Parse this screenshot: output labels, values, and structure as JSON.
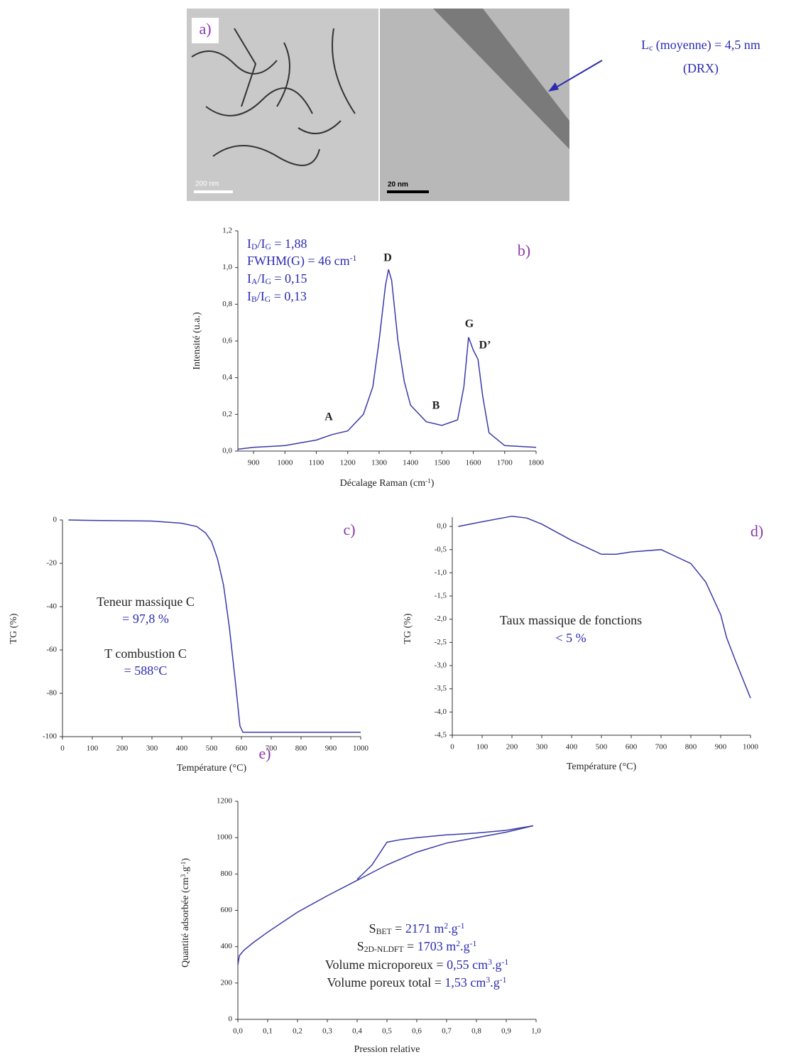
{
  "figure_a": {
    "label": "a)",
    "scale_bars": [
      "200 nm",
      "20 nm"
    ],
    "annotation": [
      {
        "color": "#2b2bb0",
        "parts": [
          "L",
          {
            "sub": "c"
          },
          " (moyenne) = 4,5 nm"
        ]
      },
      {
        "color": "#2b2bb0",
        "parts": [
          "(DRX)"
        ]
      }
    ]
  },
  "chart_data": [
    {
      "type": "line",
      "panel_label": "b)",
      "xlabel": [
        "Décalage Raman (cm",
        {
          "sup": "-1"
        },
        ")"
      ],
      "ylabel": "Intensité (u.a.)",
      "xlim": [
        850,
        1800
      ],
      "ylim": [
        0,
        1.2
      ],
      "xticks": [
        900,
        1000,
        1100,
        1200,
        1300,
        1400,
        1500,
        1600,
        1700,
        1800
      ],
      "yticks": [
        {
          "value": 0,
          "label": "0,0"
        },
        {
          "value": 0.2,
          "label": "0,2"
        },
        {
          "value": 0.4,
          "label": "0,4"
        },
        {
          "value": 0.6,
          "label": "0,6"
        },
        {
          "value": 0.8,
          "label": "0,8"
        },
        {
          "value": 1,
          "label": "1,0"
        },
        {
          "value": 1.2,
          "label": "1,2"
        }
      ],
      "x": [
        850,
        900,
        1000,
        1100,
        1150,
        1200,
        1250,
        1280,
        1300,
        1320,
        1330,
        1340,
        1360,
        1380,
        1400,
        1450,
        1500,
        1550,
        1570,
        1585,
        1600,
        1615,
        1630,
        1650,
        1700,
        1800
      ],
      "series": [
        {
          "color": "#3a3aa8",
          "values": [
            0.01,
            0.02,
            0.03,
            0.06,
            0.09,
            0.11,
            0.2,
            0.35,
            0.6,
            0.9,
            0.99,
            0.93,
            0.6,
            0.38,
            0.25,
            0.16,
            0.14,
            0.17,
            0.35,
            0.62,
            0.55,
            0.5,
            0.3,
            0.1,
            0.03,
            0.02
          ]
        }
      ],
      "peak_labels": [
        "A",
        "D",
        "B",
        "G",
        "D’"
      ],
      "annotations": [
        {
          "color": "#2b2bb0",
          "parts": [
            "I",
            {
              "sub": "D"
            },
            "/I",
            {
              "sub": "G"
            },
            " = 1,88"
          ]
        },
        {
          "color": "#2b2bb0",
          "parts": [
            "FWHM(G) = 46 cm",
            {
              "sup": "-1"
            }
          ]
        },
        {
          "color": "#2b2bb0",
          "parts": [
            "I",
            {
              "sub": "A"
            },
            "/I",
            {
              "sub": "G"
            },
            " = 0,15"
          ]
        },
        {
          "color": "#2b2bb0",
          "parts": [
            "I",
            {
              "sub": "B"
            },
            "/I",
            {
              "sub": "G"
            },
            " = 0,13"
          ]
        }
      ]
    },
    {
      "type": "line",
      "panel_label": "c)",
      "xlabel": "Température (°C)",
      "ylabel": "TG (%)",
      "xlim": [
        0,
        1000
      ],
      "ylim": [
        -100,
        0
      ],
      "xticks": [
        0,
        100,
        200,
        300,
        400,
        500,
        600,
        700,
        800,
        900,
        1000
      ],
      "yticks": [
        -100,
        -80,
        -60,
        -40,
        -20,
        0
      ],
      "x": [
        20,
        100,
        300,
        400,
        450,
        480,
        500,
        520,
        540,
        560,
        580,
        595,
        605,
        1000
      ],
      "series": [
        {
          "color": "#3a3aa8",
          "values": [
            0,
            -0.2,
            -0.5,
            -1.5,
            -3,
            -6,
            -10,
            -18,
            -30,
            -50,
            -75,
            -95,
            -98,
            -98
          ]
        }
      ],
      "annotations": [
        {
          "color": "#222222",
          "parts": [
            "Teneur massique C"
          ]
        },
        {
          "color": "#2b2bb0",
          "parts": [
            "= 97,8 %"
          ]
        },
        {
          "color": "#222222",
          "parts": [
            "T combustion C"
          ]
        },
        {
          "color": "#2b2bb0",
          "parts": [
            "= 588°C"
          ]
        }
      ]
    },
    {
      "type": "line",
      "panel_label": "d)",
      "xlabel": "Température (°C)",
      "ylabel": "TG (%)",
      "xlim": [
        0,
        1000
      ],
      "ylim": [
        -4.5,
        0.2
      ],
      "xticks": [
        0,
        100,
        200,
        300,
        400,
        500,
        600,
        700,
        800,
        900,
        1000
      ],
      "yticks": [
        {
          "value": -4.5,
          "label": "-4,5"
        },
        {
          "value": -4,
          "label": "-4,0"
        },
        {
          "value": -3.5,
          "label": "-3,5"
        },
        {
          "value": -3,
          "label": "-3,0"
        },
        {
          "value": -2.5,
          "label": "-2,5"
        },
        {
          "value": -2,
          "label": "-2,0"
        },
        {
          "value": -1.5,
          "label": "-1,5"
        },
        {
          "value": -1,
          "label": "-1,0"
        },
        {
          "value": -0.5,
          "label": "-0,5"
        },
        {
          "value": 0,
          "label": "0,0"
        }
      ],
      "x": [
        20,
        100,
        200,
        250,
        300,
        400,
        500,
        550,
        600,
        700,
        750,
        800,
        850,
        900,
        920,
        950,
        1000
      ],
      "series": [
        {
          "color": "#3a3aa8",
          "values": [
            0,
            0.1,
            0.22,
            0.18,
            0.05,
            -0.3,
            -0.6,
            -0.6,
            -0.55,
            -0.5,
            -0.65,
            -0.8,
            -1.2,
            -1.9,
            -2.4,
            -2.9,
            -3.7
          ]
        }
      ],
      "annotations": [
        {
          "color": "#222222",
          "parts": [
            "Taux massique de fonctions"
          ]
        },
        {
          "color": "#2b2bb0",
          "parts": [
            "< 5 %"
          ]
        }
      ]
    },
    {
      "type": "line",
      "panel_label": "e)",
      "xlabel": "Pression relative",
      "ylabel": [
        "Quantité adsorbée (cm",
        {
          "sup": "3"
        },
        ".g",
        {
          "sup": "-1"
        },
        ")"
      ],
      "xlim": [
        0,
        1
      ],
      "ylim": [
        0,
        1200
      ],
      "xticks": [
        {
          "value": 0,
          "label": "0,0"
        },
        {
          "value": 0.1,
          "label": "0,1"
        },
        {
          "value": 0.2,
          "label": "0,2"
        },
        {
          "value": 0.3,
          "label": "0,3"
        },
        {
          "value": 0.4,
          "label": "0,4"
        },
        {
          "value": 0.5,
          "label": "0,5"
        },
        {
          "value": 0.6,
          "label": "0,6"
        },
        {
          "value": 0.7,
          "label": "0,7"
        },
        {
          "value": 0.8,
          "label": "0,8"
        },
        {
          "value": 0.9,
          "label": "0,9"
        },
        {
          "value": 1,
          "label": "1,0"
        }
      ],
      "yticks": [
        0,
        200,
        400,
        600,
        800,
        1000,
        1200
      ],
      "series": [
        {
          "color": "#3a3aa8",
          "x": [
            0,
            0.005,
            0.02,
            0.05,
            0.1,
            0.2,
            0.3,
            0.4,
            0.5,
            0.6,
            0.7,
            0.8,
            0.9,
            0.99
          ],
          "values": [
            300,
            350,
            380,
            420,
            480,
            590,
            680,
            765,
            850,
            920,
            970,
            1000,
            1030,
            1065
          ]
        },
        {
          "color": "#3a3aa8",
          "x": [
            0.99,
            0.9,
            0.8,
            0.7,
            0.6,
            0.55,
            0.5,
            0.45,
            0.4
          ],
          "values": [
            1065,
            1040,
            1025,
            1015,
            1000,
            990,
            975,
            850,
            770
          ]
        }
      ],
      "annotations": [
        {
          "color": "#222222",
          "parts": [
            "S",
            {
              "sub": "BET"
            },
            " = ",
            {
              "text": "2171 m",
              "color": "#2b2bb0"
            },
            {
              "sup": "2",
              "color": "#2b2bb0"
            },
            {
              "text": ".g",
              "color": "#2b2bb0"
            },
            {
              "sup": "-1",
              "color": "#2b2bb0"
            }
          ]
        },
        {
          "color": "#222222",
          "parts": [
            "S",
            {
              "sub": "2D-NLDFT"
            },
            " = ",
            {
              "text": "1703 m",
              "color": "#2b2bb0"
            },
            {
              "sup": "2",
              "color": "#2b2bb0"
            },
            {
              "text": ".g",
              "color": "#2b2bb0"
            },
            {
              "sup": "-1",
              "color": "#2b2bb0"
            }
          ]
        },
        {
          "color": "#222222",
          "parts": [
            "Volume microporeux = ",
            {
              "text": "0,55 cm",
              "color": "#2b2bb0"
            },
            {
              "sup": "3",
              "color": "#2b2bb0"
            },
            {
              "text": ".g",
              "color": "#2b2bb0"
            },
            {
              "sup": "-1",
              "color": "#2b2bb0"
            }
          ]
        },
        {
          "color": "#222222",
          "parts": [
            "Volume poreux total = ",
            {
              "text": "1,53 cm",
              "color": "#2b2bb0"
            },
            {
              "sup": "3",
              "color": "#2b2bb0"
            },
            {
              "text": ".g",
              "color": "#2b2bb0"
            },
            {
              "sup": "-1",
              "color": "#2b2bb0"
            }
          ]
        }
      ]
    }
  ]
}
